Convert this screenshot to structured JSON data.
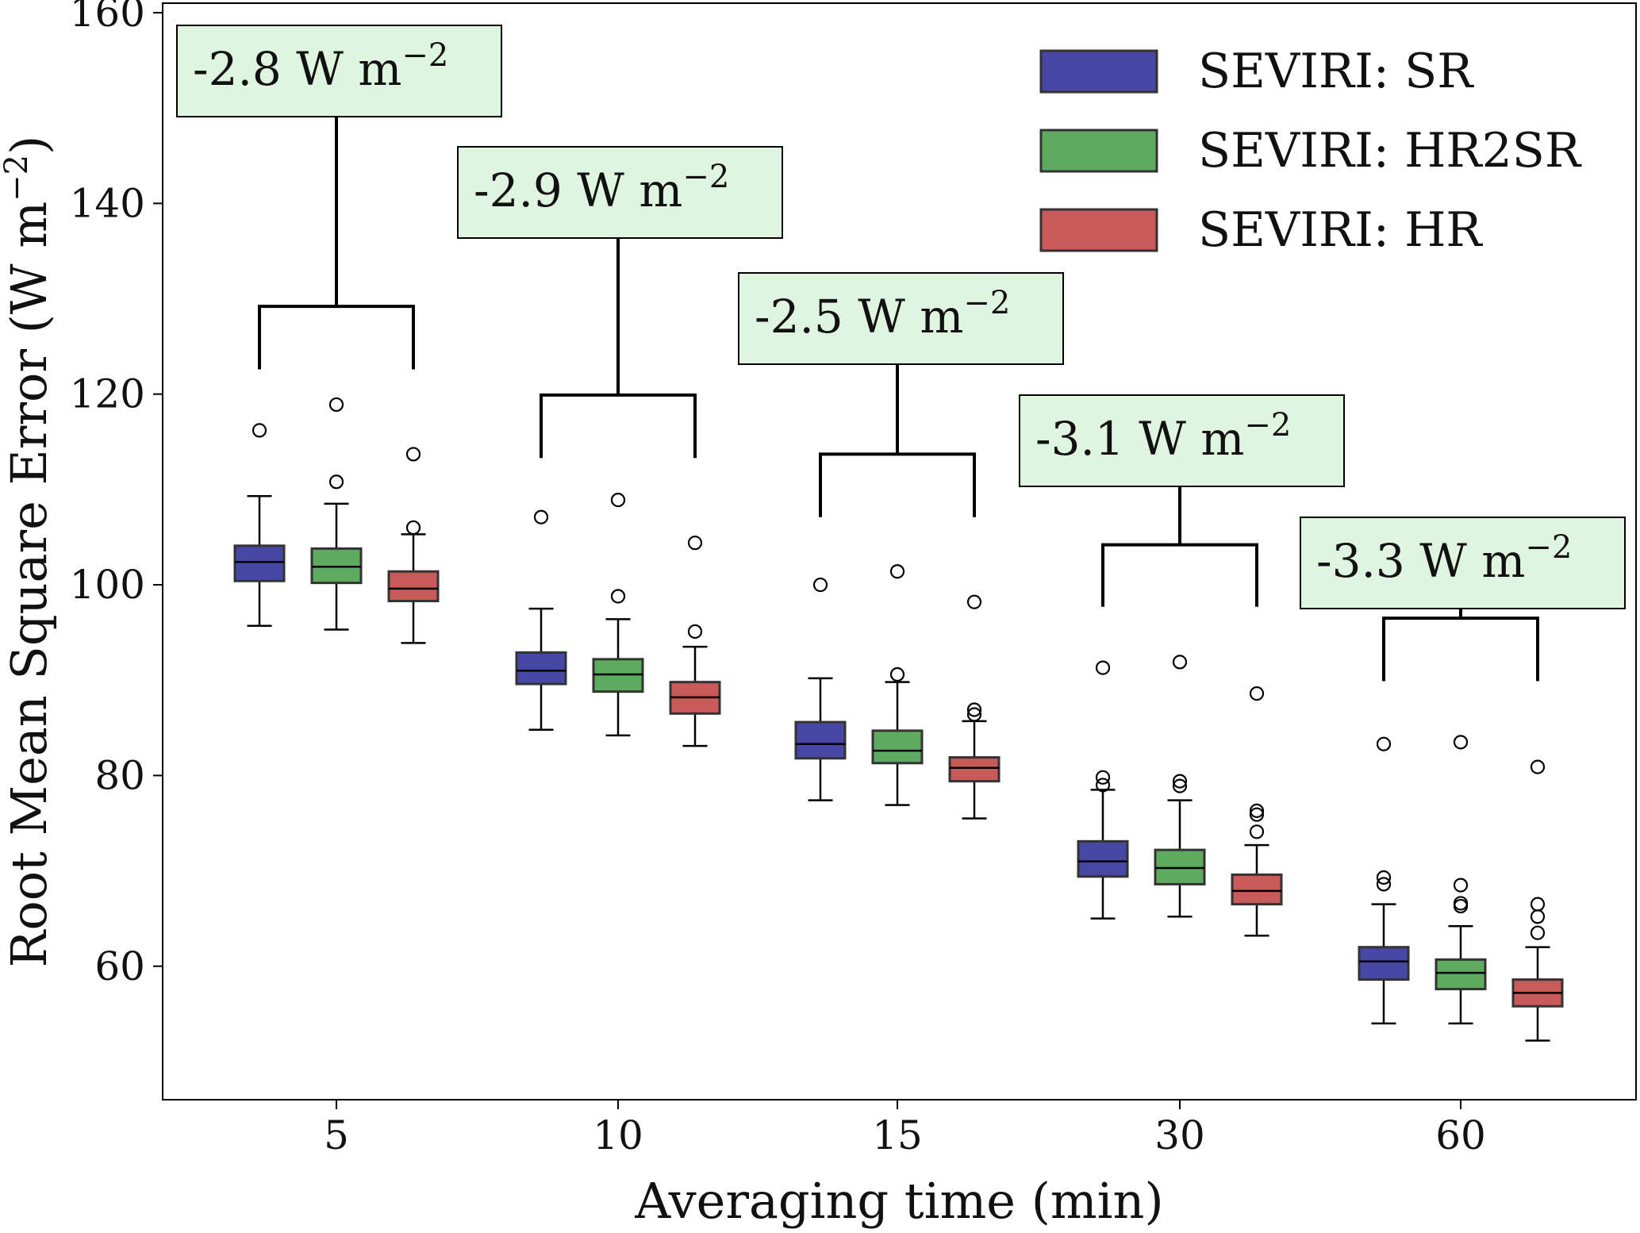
{
  "chart_data": {
    "type": "box",
    "xlabel": "Averaging time (min)",
    "ylabel": "Root Mean Square Error (W m",
    "ylabel_sup": "−2",
    "ylim": [
      46,
      161
    ],
    "yticks": [
      "60",
      "80",
      "100",
      "120",
      "140",
      "160"
    ],
    "categories": [
      "5",
      "10",
      "15",
      "30",
      "60"
    ],
    "legend_position": "top-right",
    "grid": false,
    "series": [
      {
        "name": "SEVIRI: SR",
        "color": "#4747a6",
        "boxes": [
          {
            "whislo": 95.7,
            "q1": 100.4,
            "med": 102.4,
            "q3": 104.1,
            "whishi": 109.3,
            "fliers": [
              116.2
            ]
          },
          {
            "whislo": 84.8,
            "q1": 89.6,
            "med": 91.0,
            "q3": 92.9,
            "whishi": 97.5,
            "fliers": [
              107.1
            ]
          },
          {
            "whislo": 77.4,
            "q1": 81.8,
            "med": 83.3,
            "q3": 85.6,
            "whishi": 90.2,
            "fliers": [
              100.0
            ]
          },
          {
            "whislo": 65.0,
            "q1": 69.4,
            "med": 71.0,
            "q3": 73.1,
            "whishi": 78.5,
            "fliers": [
              79.0,
              79.8,
              91.3
            ]
          },
          {
            "whislo": 54.0,
            "q1": 58.6,
            "med": 60.5,
            "q3": 62.0,
            "whishi": 66.5,
            "fliers": [
              68.6,
              69.3,
              83.3
            ]
          }
        ]
      },
      {
        "name": "SEVIRI: HR2SR",
        "color": "#5eaa5e",
        "boxes": [
          {
            "whislo": 95.3,
            "q1": 100.2,
            "med": 101.9,
            "q3": 103.8,
            "whishi": 108.5,
            "fliers": [
              110.8,
              118.9
            ]
          },
          {
            "whislo": 84.2,
            "q1": 88.8,
            "med": 90.6,
            "q3": 92.2,
            "whishi": 96.4,
            "fliers": [
              98.8,
              108.9
            ]
          },
          {
            "whislo": 76.9,
            "q1": 81.3,
            "med": 82.6,
            "q3": 84.7,
            "whishi": 89.8,
            "fliers": [
              90.6,
              101.4
            ]
          },
          {
            "whislo": 65.2,
            "q1": 68.6,
            "med": 70.3,
            "q3": 72.2,
            "whishi": 77.4,
            "fliers": [
              78.9,
              79.4,
              91.9
            ]
          },
          {
            "whislo": 54.0,
            "q1": 57.6,
            "med": 59.3,
            "q3": 60.7,
            "whishi": 64.2,
            "fliers": [
              66.3,
              66.6,
              68.5,
              83.5
            ]
          }
        ]
      },
      {
        "name": "SEVIRI: HR",
        "color": "#c95a5a",
        "boxes": [
          {
            "whislo": 93.9,
            "q1": 98.3,
            "med": 99.6,
            "q3": 101.4,
            "whishi": 105.3,
            "fliers": [
              106.0,
              113.7
            ]
          },
          {
            "whislo": 83.1,
            "q1": 86.5,
            "med": 88.2,
            "q3": 89.8,
            "whishi": 93.5,
            "fliers": [
              95.1,
              104.4
            ]
          },
          {
            "whislo": 75.5,
            "q1": 79.4,
            "med": 80.8,
            "q3": 81.9,
            "whishi": 85.7,
            "fliers": [
              86.4,
              86.9,
              98.2
            ]
          },
          {
            "whislo": 63.2,
            "q1": 66.5,
            "med": 67.9,
            "q3": 69.6,
            "whishi": 72.7,
            "fliers": [
              74.1,
              75.9,
              76.3,
              88.6
            ]
          },
          {
            "whislo": 52.2,
            "q1": 55.8,
            "med": 57.2,
            "q3": 58.6,
            "whishi": 62.0,
            "fliers": [
              63.5,
              65.2,
              66.5,
              80.9
            ]
          }
        ]
      }
    ],
    "annotations": [
      {
        "text": "-2.8 W m",
        "sup": "−2",
        "bracket_y": 129.2,
        "bracket_tick_y": 122.6,
        "stem_top_y": 149.5
      },
      {
        "text": "-2.9 W m",
        "sup": "−2",
        "bracket_y": 119.9,
        "bracket_tick_y": 113.3,
        "stem_top_y": 136.6
      },
      {
        "text": "-2.5 W m",
        "sup": "−2",
        "bracket_y": 113.7,
        "bracket_tick_y": 107.1,
        "stem_top_y": 123.5
      },
      {
        "text": "-3.1 W m",
        "sup": "−2",
        "bracket_y": 104.2,
        "bracket_tick_y": 97.7,
        "stem_top_y": 110.5
      },
      {
        "text": "-3.3 W m",
        "sup": "−2",
        "bracket_y": 96.5,
        "bracket_tick_y": 89.9,
        "stem_top_y": 97.6
      }
    ],
    "annotation_fill": "#e0f5e0"
  }
}
